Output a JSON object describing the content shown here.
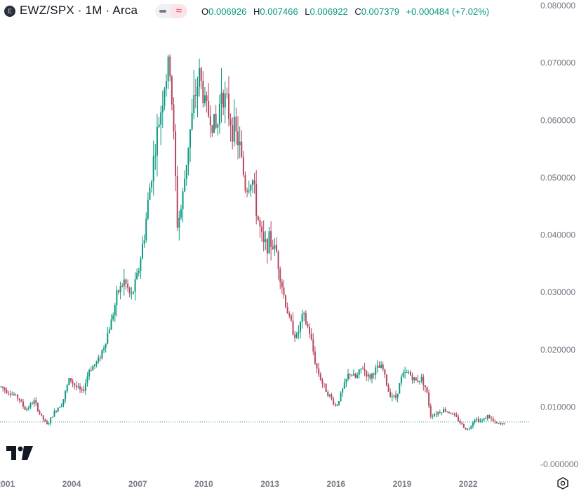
{
  "header": {
    "symbol_icon": "E",
    "symbol": "EWZ/SPX · 1M · Arca",
    "ohlc": {
      "o_label": "O",
      "o_value": "0.006926",
      "h_label": "H",
      "h_value": "0.007466",
      "l_label": "L",
      "l_value": "0.006922",
      "c_label": "C",
      "c_value": "0.007379",
      "change": "+0.000484 (+7.02%)"
    }
  },
  "icons": {
    "logo": "tradingview-logo-icon",
    "settings": "settings-gear-icon",
    "hide": "minus-icon",
    "compare": "wave-icon"
  },
  "colors": {
    "up": "#089981",
    "down": "#b5475f",
    "axis_text": "#787b86",
    "price_line": "#089981"
  },
  "chart_data": {
    "type": "candlestick",
    "title": "EWZ/SPX · 1M · Arca",
    "y_ticks": [
      "0.080000",
      "0.070000",
      "0.060000",
      "0.050000",
      "0.040000",
      "0.030000",
      "0.020000",
      "0.010000",
      "-0.000000"
    ],
    "ylim": [
      -0.001,
      0.081
    ],
    "x_ticks": [
      "2001",
      "2004",
      "2007",
      "2010",
      "2013",
      "2016",
      "2019",
      "2022"
    ],
    "x_range": [
      2000.75,
      2024.8
    ],
    "last_close": 0.007379,
    "grid": false,
    "series": [
      {
        "anchors": [
          [
            2000.8,
            0.0135
          ],
          [
            2001.2,
            0.0125
          ],
          [
            2001.6,
            0.0115
          ],
          [
            2001.9,
            0.0095
          ],
          [
            2002.3,
            0.011
          ],
          [
            2002.6,
            0.0085
          ],
          [
            2002.9,
            0.0068
          ],
          [
            2003.2,
            0.009
          ],
          [
            2003.6,
            0.011
          ],
          [
            2003.9,
            0.015
          ],
          [
            2004.2,
            0.0135
          ],
          [
            2004.5,
            0.0125
          ],
          [
            2004.8,
            0.0165
          ],
          [
            2005.2,
            0.018
          ],
          [
            2005.5,
            0.021
          ],
          [
            2005.8,
            0.025
          ],
          [
            2006.1,
            0.03
          ],
          [
            2006.4,
            0.032
          ],
          [
            2006.7,
            0.029
          ],
          [
            2007.0,
            0.033
          ],
          [
            2007.3,
            0.04
          ],
          [
            2007.6,
            0.05
          ],
          [
            2007.9,
            0.058
          ],
          [
            2008.2,
            0.066
          ],
          [
            2008.45,
            0.07
          ],
          [
            2008.6,
            0.06
          ],
          [
            2008.8,
            0.042
          ],
          [
            2009.0,
            0.045
          ],
          [
            2009.3,
            0.056
          ],
          [
            2009.6,
            0.064
          ],
          [
            2009.8,
            0.068
          ],
          [
            2010.1,
            0.062
          ],
          [
            2010.4,
            0.06
          ],
          [
            2010.6,
            0.058
          ],
          [
            2010.8,
            0.066
          ],
          [
            2011.0,
            0.063
          ],
          [
            2011.3,
            0.059
          ],
          [
            2011.6,
            0.056
          ],
          [
            2011.9,
            0.048
          ],
          [
            2012.2,
            0.05
          ],
          [
            2012.4,
            0.044
          ],
          [
            2012.7,
            0.038
          ],
          [
            2013.0,
            0.039
          ],
          [
            2013.3,
            0.037
          ],
          [
            2013.6,
            0.03
          ],
          [
            2013.9,
            0.025
          ],
          [
            2014.2,
            0.022
          ],
          [
            2014.5,
            0.026
          ],
          [
            2014.8,
            0.023
          ],
          [
            2015.1,
            0.017
          ],
          [
            2015.4,
            0.014
          ],
          [
            2015.7,
            0.012
          ],
          [
            2016.0,
            0.01
          ],
          [
            2016.3,
            0.013
          ],
          [
            2016.6,
            0.016
          ],
          [
            2016.9,
            0.015
          ],
          [
            2017.2,
            0.017
          ],
          [
            2017.5,
            0.015
          ],
          [
            2017.8,
            0.0165
          ],
          [
            2018.1,
            0.017
          ],
          [
            2018.4,
            0.0125
          ],
          [
            2018.7,
            0.0115
          ],
          [
            2019.0,
            0.0155
          ],
          [
            2019.3,
            0.016
          ],
          [
            2019.6,
            0.0145
          ],
          [
            2019.9,
            0.015
          ],
          [
            2020.1,
            0.013
          ],
          [
            2020.3,
            0.0085
          ],
          [
            2020.6,
            0.009
          ],
          [
            2020.9,
            0.0095
          ],
          [
            2021.2,
            0.009
          ],
          [
            2021.5,
            0.008
          ],
          [
            2021.8,
            0.0065
          ],
          [
            2022.0,
            0.006
          ],
          [
            2022.3,
            0.008
          ],
          [
            2022.6,
            0.0075
          ],
          [
            2022.9,
            0.0085
          ],
          [
            2023.2,
            0.0072
          ],
          [
            2023.5,
            0.0069
          ],
          [
            2023.65,
            0.0074
          ]
        ]
      }
    ]
  }
}
